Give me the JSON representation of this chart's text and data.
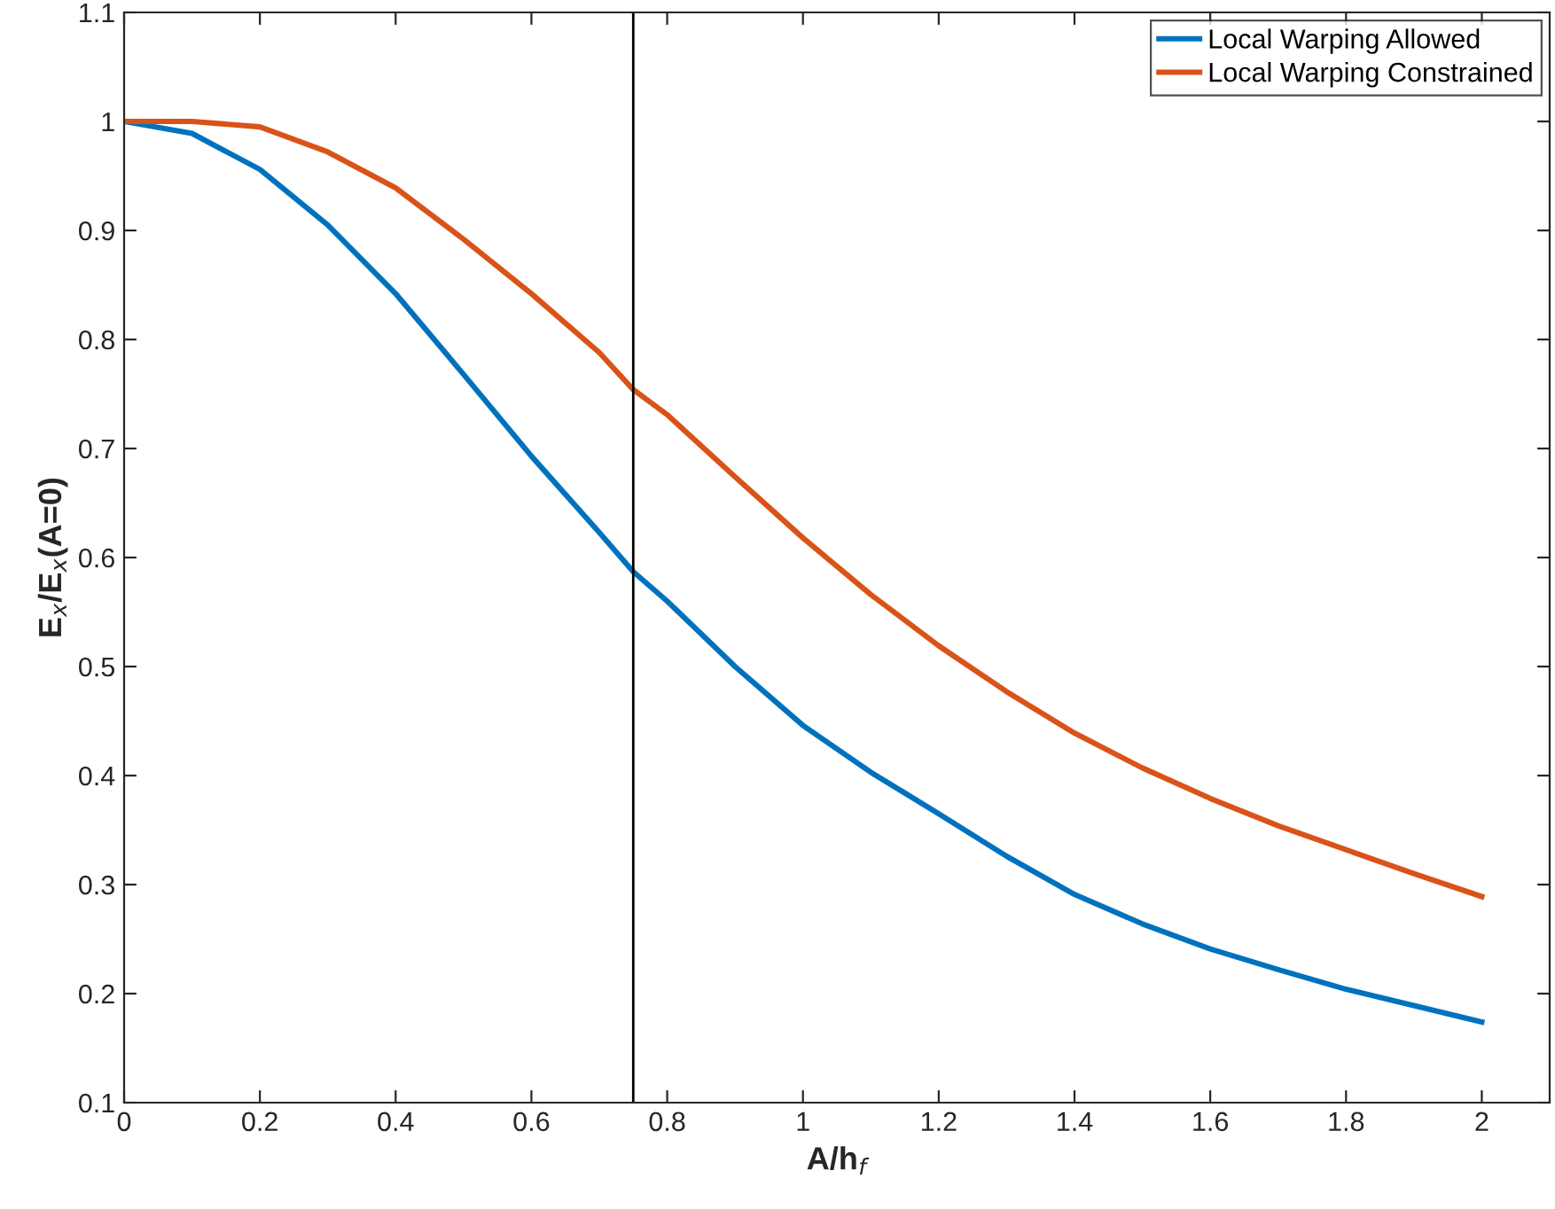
{
  "chart_data": {
    "type": "line",
    "xlabel": "A/h$_{f}$",
    "ylabel": "E$_{x}$/E$_{x}$(A=0)",
    "xlim": [
      0,
      2.1
    ],
    "ylim": [
      0.1,
      1.1
    ],
    "xticks": [
      0,
      0.2,
      0.4,
      0.6,
      0.8,
      1,
      1.2,
      1.4,
      1.6,
      1.8,
      2
    ],
    "yticks": [
      0.1,
      0.2,
      0.3,
      0.4,
      0.5,
      0.6,
      0.7,
      0.8,
      0.9,
      1,
      1.1
    ],
    "grid": false,
    "legend": "top right",
    "line_style": "solid",
    "marker": "none",
    "ref_lines": [
      {
        "axis": "x",
        "value": 0.75,
        "color": "#000000"
      }
    ],
    "series": [
      {
        "name": "Local Warping Allowed",
        "color": "#0072bd",
        "x": [
          0,
          0.1,
          0.2,
          0.3,
          0.4,
          0.5,
          0.6,
          0.7,
          0.75,
          0.8,
          0.9,
          1,
          1.1,
          1.2,
          1.3,
          1.4,
          1.5,
          1.6,
          1.7,
          1.8,
          1.9,
          2
        ],
        "values": [
          1,
          0.989,
          0.956,
          0.905,
          0.842,
          0.768,
          0.693,
          0.623,
          0.587,
          0.56,
          0.5,
          0.446,
          0.403,
          0.365,
          0.326,
          0.291,
          0.264,
          0.241,
          0.222,
          0.204,
          0.189,
          0.174
        ]
      },
      {
        "name": "Local Warping Constrained",
        "color": "#d95319",
        "x": [
          0,
          0.1,
          0.2,
          0.3,
          0.4,
          0.5,
          0.6,
          0.7,
          0.75,
          0.8,
          0.9,
          1,
          1.1,
          1.2,
          1.3,
          1.4,
          1.5,
          1.6,
          1.7,
          1.8,
          1.9,
          2
        ],
        "values": [
          1,
          1,
          0.995,
          0.972,
          0.939,
          0.892,
          0.842,
          0.788,
          0.754,
          0.731,
          0.674,
          0.618,
          0.566,
          0.519,
          0.477,
          0.439,
          0.407,
          0.379,
          0.354,
          0.332,
          0.31,
          0.289
        ]
      }
    ]
  }
}
